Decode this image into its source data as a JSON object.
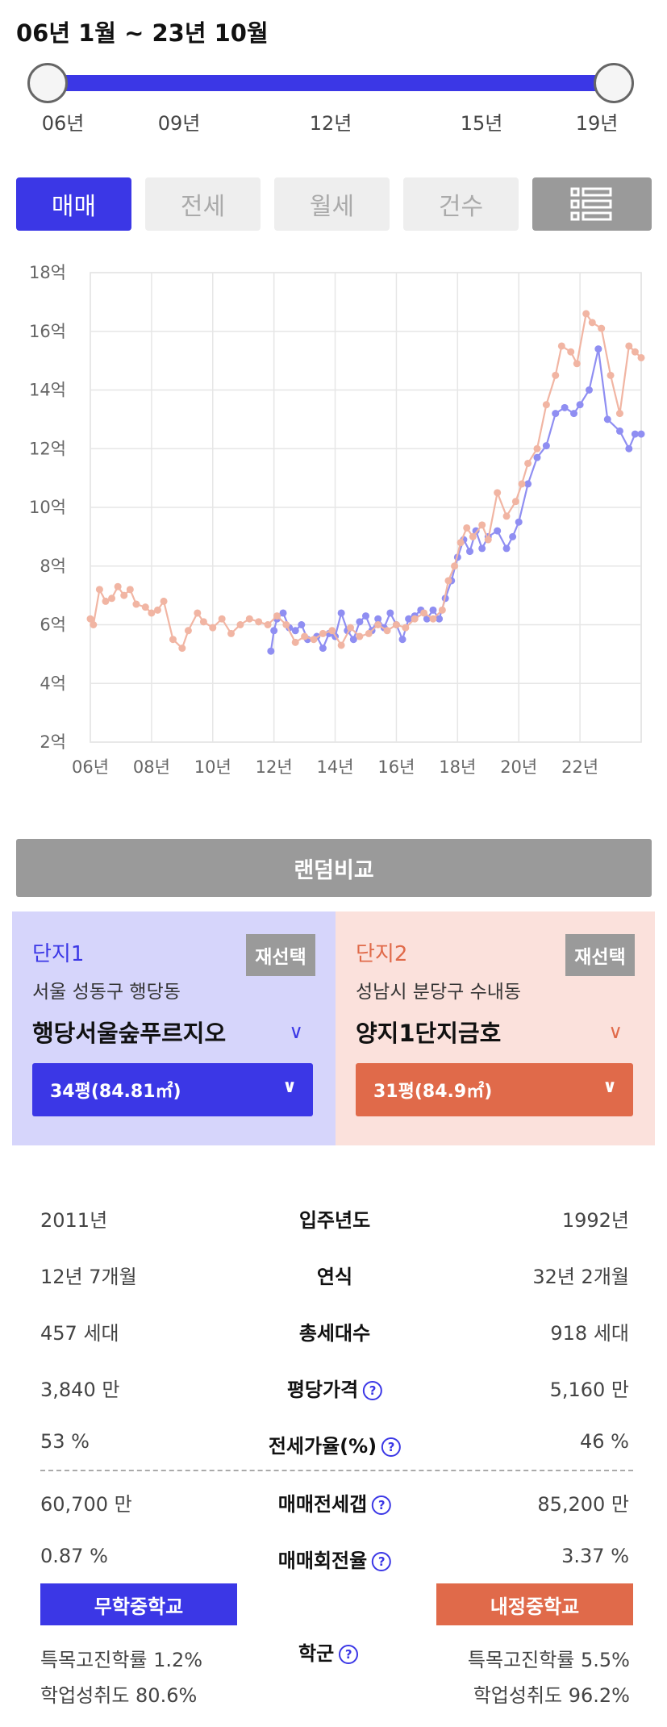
{
  "period": {
    "title": "06년 1월 ~ 23년 10월",
    "labels": [
      "06년",
      "09년",
      "12년",
      "15년",
      "19년"
    ],
    "selected_start": "06년",
    "selected_end": "19년"
  },
  "tabs": [
    {
      "label": "매매",
      "active": true
    },
    {
      "label": "전세",
      "active": false
    },
    {
      "label": "월세",
      "active": false
    },
    {
      "label": "건수",
      "active": false
    }
  ],
  "list_icon": "list-icon",
  "chart_data": {
    "type": "line",
    "x_ticks": [
      "06년",
      "08년",
      "10년",
      "12년",
      "14년",
      "16년",
      "18년",
      "20년",
      "22년"
    ],
    "y_ticks": [
      "2억",
      "4억",
      "6억",
      "8억",
      "10억",
      "12억",
      "14억",
      "16억",
      "18억"
    ],
    "ylim": [
      2,
      18
    ],
    "xlim": [
      2006,
      2024
    ],
    "grid": true,
    "series": [
      {
        "color": "#8f8ef2",
        "points": [
          [
            2011.9,
            5.1
          ],
          [
            2012.0,
            5.8
          ],
          [
            2012.1,
            6.2
          ],
          [
            2012.3,
            6.4
          ],
          [
            2012.5,
            5.9
          ],
          [
            2012.7,
            5.8
          ],
          [
            2012.9,
            6.0
          ],
          [
            2013.1,
            5.5
          ],
          [
            2013.4,
            5.6
          ],
          [
            2013.6,
            5.2
          ],
          [
            2013.8,
            5.7
          ],
          [
            2014.0,
            5.6
          ],
          [
            2014.2,
            6.4
          ],
          [
            2014.4,
            5.8
          ],
          [
            2014.6,
            5.5
          ],
          [
            2014.8,
            6.1
          ],
          [
            2015.0,
            6.3
          ],
          [
            2015.2,
            5.8
          ],
          [
            2015.4,
            6.2
          ],
          [
            2015.6,
            5.9
          ],
          [
            2015.8,
            6.4
          ],
          [
            2016.0,
            6.0
          ],
          [
            2016.2,
            5.5
          ],
          [
            2016.4,
            6.2
          ],
          [
            2016.6,
            6.3
          ],
          [
            2016.8,
            6.5
          ],
          [
            2017.0,
            6.2
          ],
          [
            2017.2,
            6.5
          ],
          [
            2017.4,
            6.2
          ],
          [
            2017.6,
            6.9
          ],
          [
            2017.8,
            7.5
          ],
          [
            2018.0,
            8.3
          ],
          [
            2018.2,
            8.9
          ],
          [
            2018.4,
            8.5
          ],
          [
            2018.6,
            9.2
          ],
          [
            2018.8,
            8.6
          ],
          [
            2019.0,
            9.0
          ],
          [
            2019.3,
            9.2
          ],
          [
            2019.6,
            8.6
          ],
          [
            2019.8,
            9.0
          ],
          [
            2020.0,
            9.5
          ],
          [
            2020.3,
            10.8
          ],
          [
            2020.6,
            11.7
          ],
          [
            2020.9,
            12.1
          ],
          [
            2021.2,
            13.2
          ],
          [
            2021.5,
            13.4
          ],
          [
            2021.8,
            13.2
          ],
          [
            2022.0,
            13.5
          ],
          [
            2022.3,
            14.0
          ],
          [
            2022.6,
            15.4
          ],
          [
            2022.9,
            13.0
          ],
          [
            2023.3,
            12.6
          ],
          [
            2023.6,
            12.0
          ],
          [
            2023.8,
            12.5
          ],
          [
            2024.0,
            12.5
          ]
        ]
      },
      {
        "color": "#f1b5a3",
        "points": [
          [
            2006.0,
            6.2
          ],
          [
            2006.1,
            6.0
          ],
          [
            2006.3,
            7.2
          ],
          [
            2006.5,
            6.8
          ],
          [
            2006.7,
            6.9
          ],
          [
            2006.9,
            7.3
          ],
          [
            2007.1,
            7.0
          ],
          [
            2007.3,
            7.2
          ],
          [
            2007.5,
            6.7
          ],
          [
            2007.8,
            6.6
          ],
          [
            2008.0,
            6.4
          ],
          [
            2008.2,
            6.5
          ],
          [
            2008.4,
            6.8
          ],
          [
            2008.7,
            5.5
          ],
          [
            2009.0,
            5.2
          ],
          [
            2009.2,
            5.8
          ],
          [
            2009.5,
            6.4
          ],
          [
            2009.7,
            6.1
          ],
          [
            2010.0,
            5.9
          ],
          [
            2010.3,
            6.2
          ],
          [
            2010.6,
            5.7
          ],
          [
            2010.9,
            6.0
          ],
          [
            2011.2,
            6.2
          ],
          [
            2011.5,
            6.1
          ],
          [
            2011.8,
            6.0
          ],
          [
            2012.1,
            6.3
          ],
          [
            2012.4,
            6.0
          ],
          [
            2012.7,
            5.4
          ],
          [
            2013.0,
            5.6
          ],
          [
            2013.3,
            5.5
          ],
          [
            2013.6,
            5.7
          ],
          [
            2013.9,
            5.8
          ],
          [
            2014.2,
            5.3
          ],
          [
            2014.5,
            5.9
          ],
          [
            2014.8,
            5.6
          ],
          [
            2015.1,
            5.7
          ],
          [
            2015.4,
            6.0
          ],
          [
            2015.7,
            5.8
          ],
          [
            2016.0,
            6.0
          ],
          [
            2016.3,
            5.9
          ],
          [
            2016.6,
            6.2
          ],
          [
            2016.9,
            6.4
          ],
          [
            2017.2,
            6.2
          ],
          [
            2017.5,
            6.5
          ],
          [
            2017.7,
            7.5
          ],
          [
            2017.9,
            8.0
          ],
          [
            2018.1,
            8.8
          ],
          [
            2018.3,
            9.3
          ],
          [
            2018.5,
            9.0
          ],
          [
            2018.8,
            9.4
          ],
          [
            2019.0,
            8.9
          ],
          [
            2019.3,
            10.5
          ],
          [
            2019.6,
            9.7
          ],
          [
            2019.9,
            10.2
          ],
          [
            2020.1,
            10.8
          ],
          [
            2020.3,
            11.5
          ],
          [
            2020.6,
            12.0
          ],
          [
            2020.9,
            13.5
          ],
          [
            2021.2,
            14.5
          ],
          [
            2021.4,
            15.5
          ],
          [
            2021.7,
            15.3
          ],
          [
            2021.9,
            14.9
          ],
          [
            2022.2,
            16.6
          ],
          [
            2022.4,
            16.3
          ],
          [
            2022.7,
            16.1
          ],
          [
            2023.0,
            14.5
          ],
          [
            2023.3,
            13.2
          ],
          [
            2023.6,
            15.5
          ],
          [
            2023.8,
            15.3
          ],
          [
            2024.0,
            15.1
          ]
        ]
      }
    ]
  },
  "random_compare": "랜덤비교",
  "complex1": {
    "label": "단지1",
    "reselect": "재선택",
    "address": "서울 성동구 행당동",
    "name": "행당서울숲푸르지오",
    "size": "34평(84.81㎡)"
  },
  "complex2": {
    "label": "단지2",
    "reselect": "재선택",
    "address": "성남시 분당구 수내동",
    "name": "양지1단지금호",
    "size": "31평(84.9㎡)"
  },
  "compare_rows": [
    {
      "left": "2011년",
      "label": "입주년도",
      "right": "1992년",
      "help": false
    },
    {
      "left": "12년 7개월",
      "label": "연식",
      "right": "32년 2개월",
      "help": false
    },
    {
      "left": "457 세대",
      "label": "총세대수",
      "right": "918 세대",
      "help": false
    },
    {
      "left": "3,840 만",
      "label": "평당가격",
      "right": "5,160 만",
      "help": true
    },
    {
      "left": "53 %",
      "label": "전세가율(%)",
      "right": "46 %",
      "help": true
    },
    {
      "left": "60,700 만",
      "label": "매매전세갭",
      "right": "85,200 만",
      "help": true
    },
    {
      "left": "0.87 %",
      "label": "매매회전율",
      "right": "3.37 %",
      "help": true
    }
  ],
  "school": {
    "label": "학군",
    "left_name": "무학중학교",
    "left_rate": "특목고진학률 1.2%",
    "left_score": "학업성취도 80.6%",
    "right_name": "내정중학교",
    "right_rate": "특목고진학률 5.5%",
    "right_score": "학업성취도 96.2%"
  },
  "help_glyph": "?"
}
